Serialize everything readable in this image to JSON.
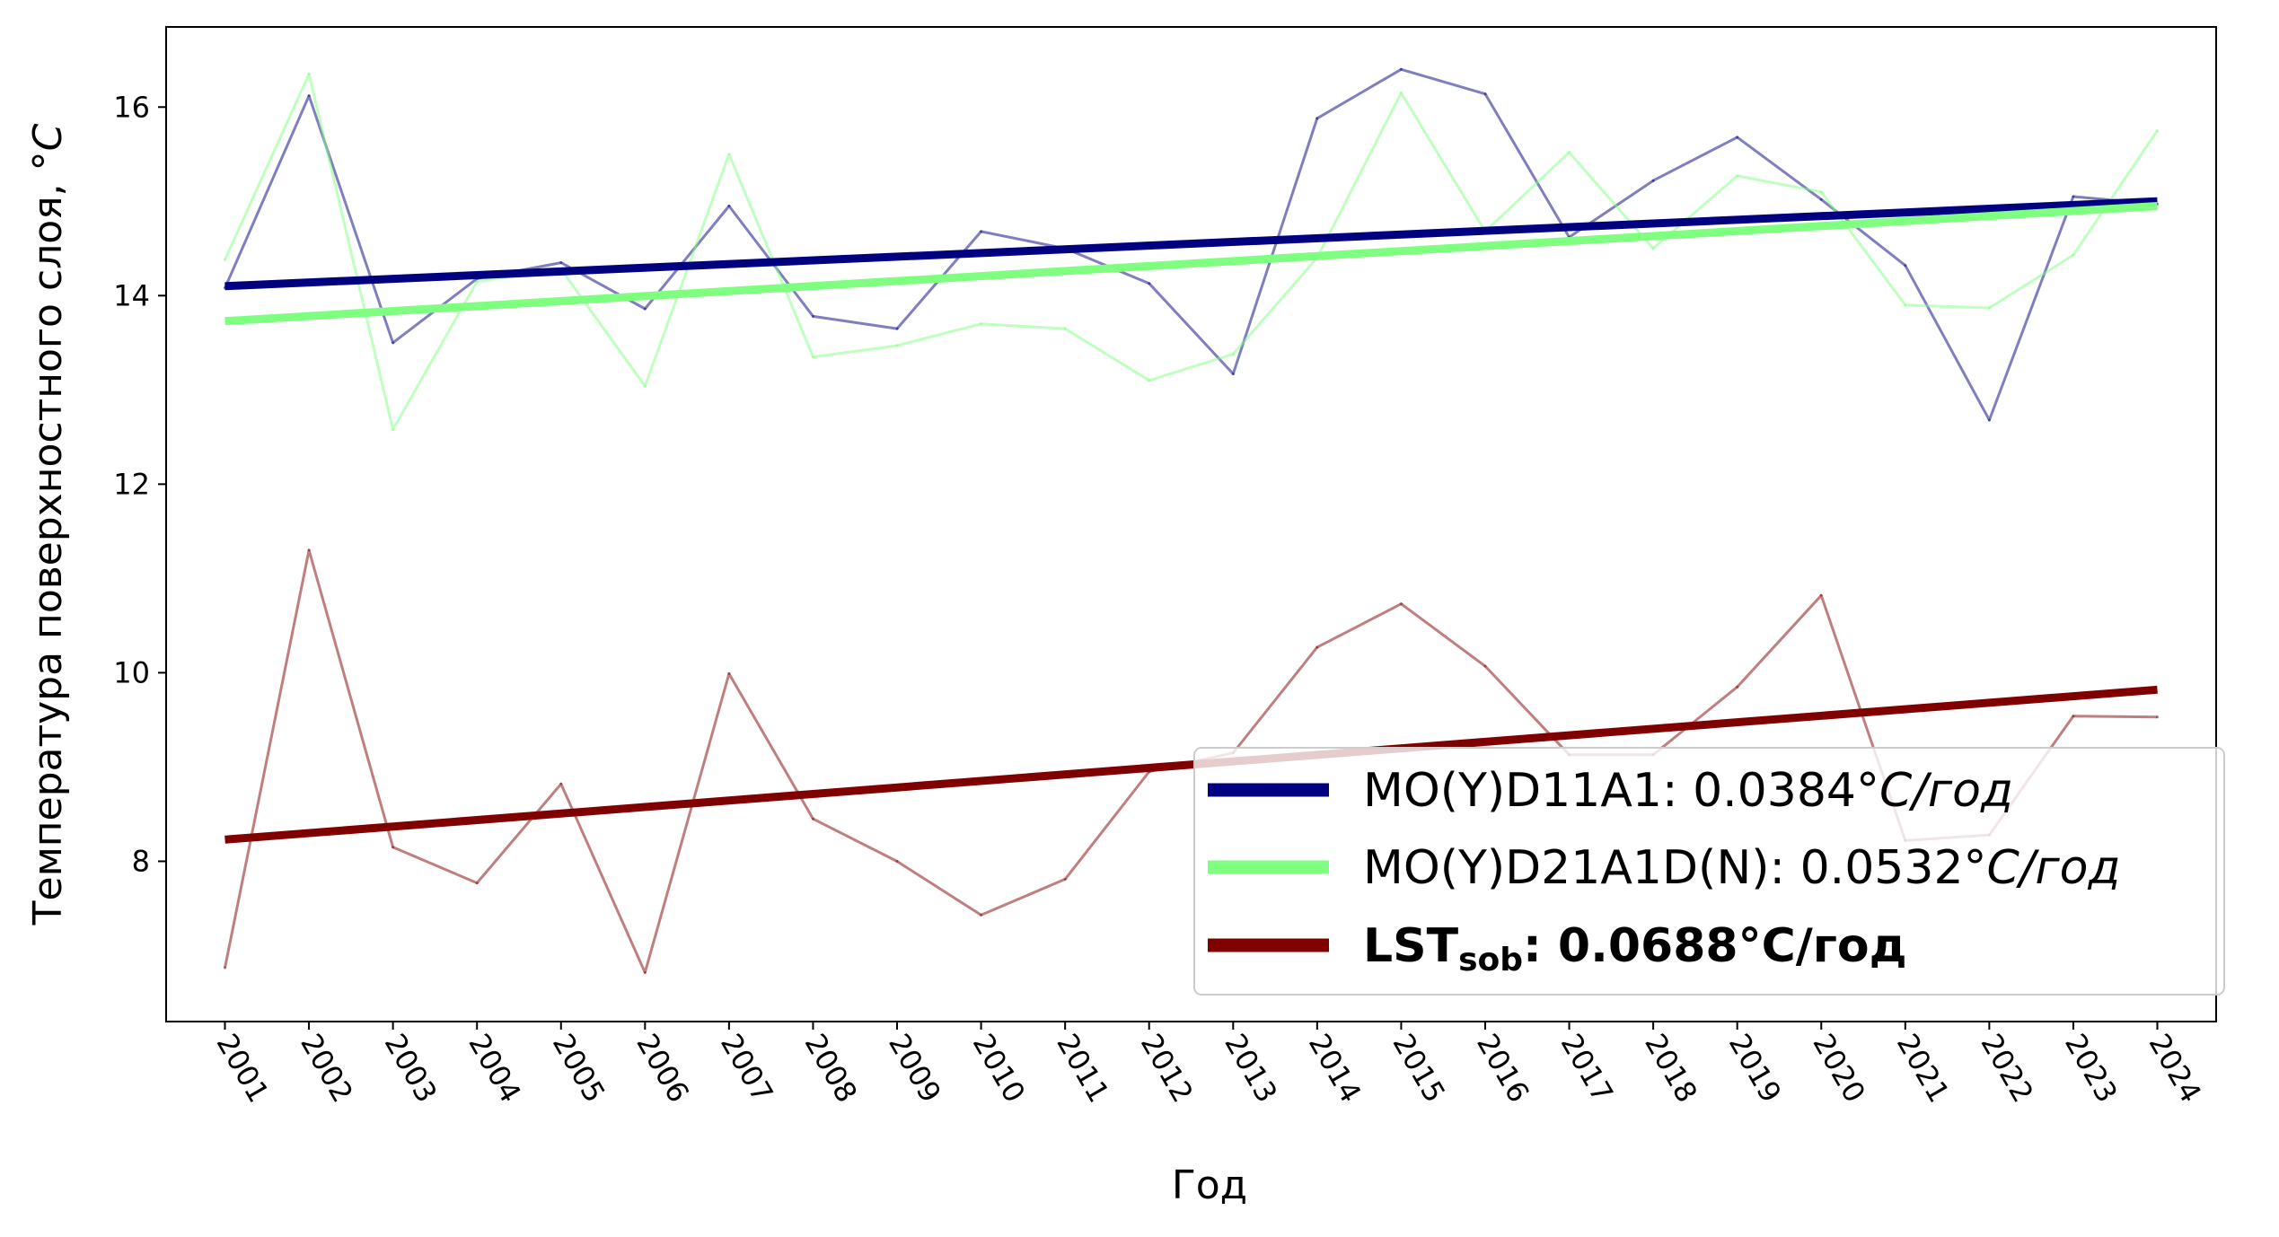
{
  "chart_data": {
    "type": "line",
    "xlabel": "Год",
    "ylabel": "Температура поверхностного слоя, °C",
    "ylabel_text": "Температура поверхностного слоя, ",
    "ylabel_unit": "°C",
    "x": [
      2001,
      2002,
      2003,
      2004,
      2005,
      2006,
      2007,
      2008,
      2009,
      2010,
      2011,
      2012,
      2013,
      2014,
      2015,
      2016,
      2017,
      2018,
      2019,
      2020,
      2021,
      2022,
      2023,
      2024
    ],
    "xtick_labels": [
      "2001",
      "2002",
      "2003",
      "2004",
      "2005",
      "2006",
      "2007",
      "2008",
      "2009",
      "2010",
      "2011",
      "2012",
      "2013",
      "2014",
      "2015",
      "2016",
      "2017",
      "2018",
      "2019",
      "2020",
      "2021",
      "2022",
      "2023",
      "2024"
    ],
    "xtick_rotation_deg": -60,
    "xlim": [
      2000.3,
      2024.7
    ],
    "ylim": [
      6.3,
      16.85
    ],
    "yticks": [
      8,
      10,
      12,
      14,
      16
    ],
    "ytick_labels": [
      "8",
      "10",
      "12",
      "14",
      "16"
    ],
    "grid": false,
    "legend_position": "lower-right",
    "series": [
      {
        "name": "MO(Y)D11A1",
        "color": "#000080",
        "values": [
          14.08,
          16.12,
          13.5,
          14.18,
          14.35,
          13.86,
          14.95,
          13.78,
          13.65,
          14.68,
          14.5,
          14.13,
          13.17,
          15.88,
          16.4,
          16.14,
          14.62,
          15.22,
          15.68,
          15.02,
          14.32,
          12.68,
          15.05,
          14.97
        ],
        "trend": [
          14.1,
          15.0
        ],
        "slope_label": "0.0384°",
        "unit_label": "C/год"
      },
      {
        "name": "MO(Y)D21A1D(N)",
        "color": "#7fff7f",
        "values": [
          14.38,
          16.35,
          12.58,
          14.15,
          14.28,
          13.04,
          15.5,
          13.35,
          13.47,
          13.7,
          13.65,
          13.1,
          13.38,
          14.4,
          16.15,
          14.68,
          15.52,
          14.5,
          15.27,
          15.1,
          13.9,
          13.87,
          14.43,
          15.75
        ],
        "trend": [
          13.73,
          14.95
        ],
        "slope_label": "0.0532°",
        "unit_label": "C/год"
      },
      {
        "name": "LST",
        "name_subscript": "sob",
        "color": "#800000",
        "values": [
          6.87,
          11.3,
          8.15,
          7.77,
          8.82,
          6.82,
          9.99,
          8.45,
          8.0,
          7.43,
          7.81,
          8.95,
          9.15,
          10.27,
          10.73,
          10.07,
          9.13,
          9.13,
          9.85,
          10.82,
          8.22,
          8.28,
          9.54,
          9.53
        ],
        "trend": [
          8.23,
          9.82
        ],
        "slope_label": "0.0688°C/год",
        "bold": true
      }
    ]
  }
}
